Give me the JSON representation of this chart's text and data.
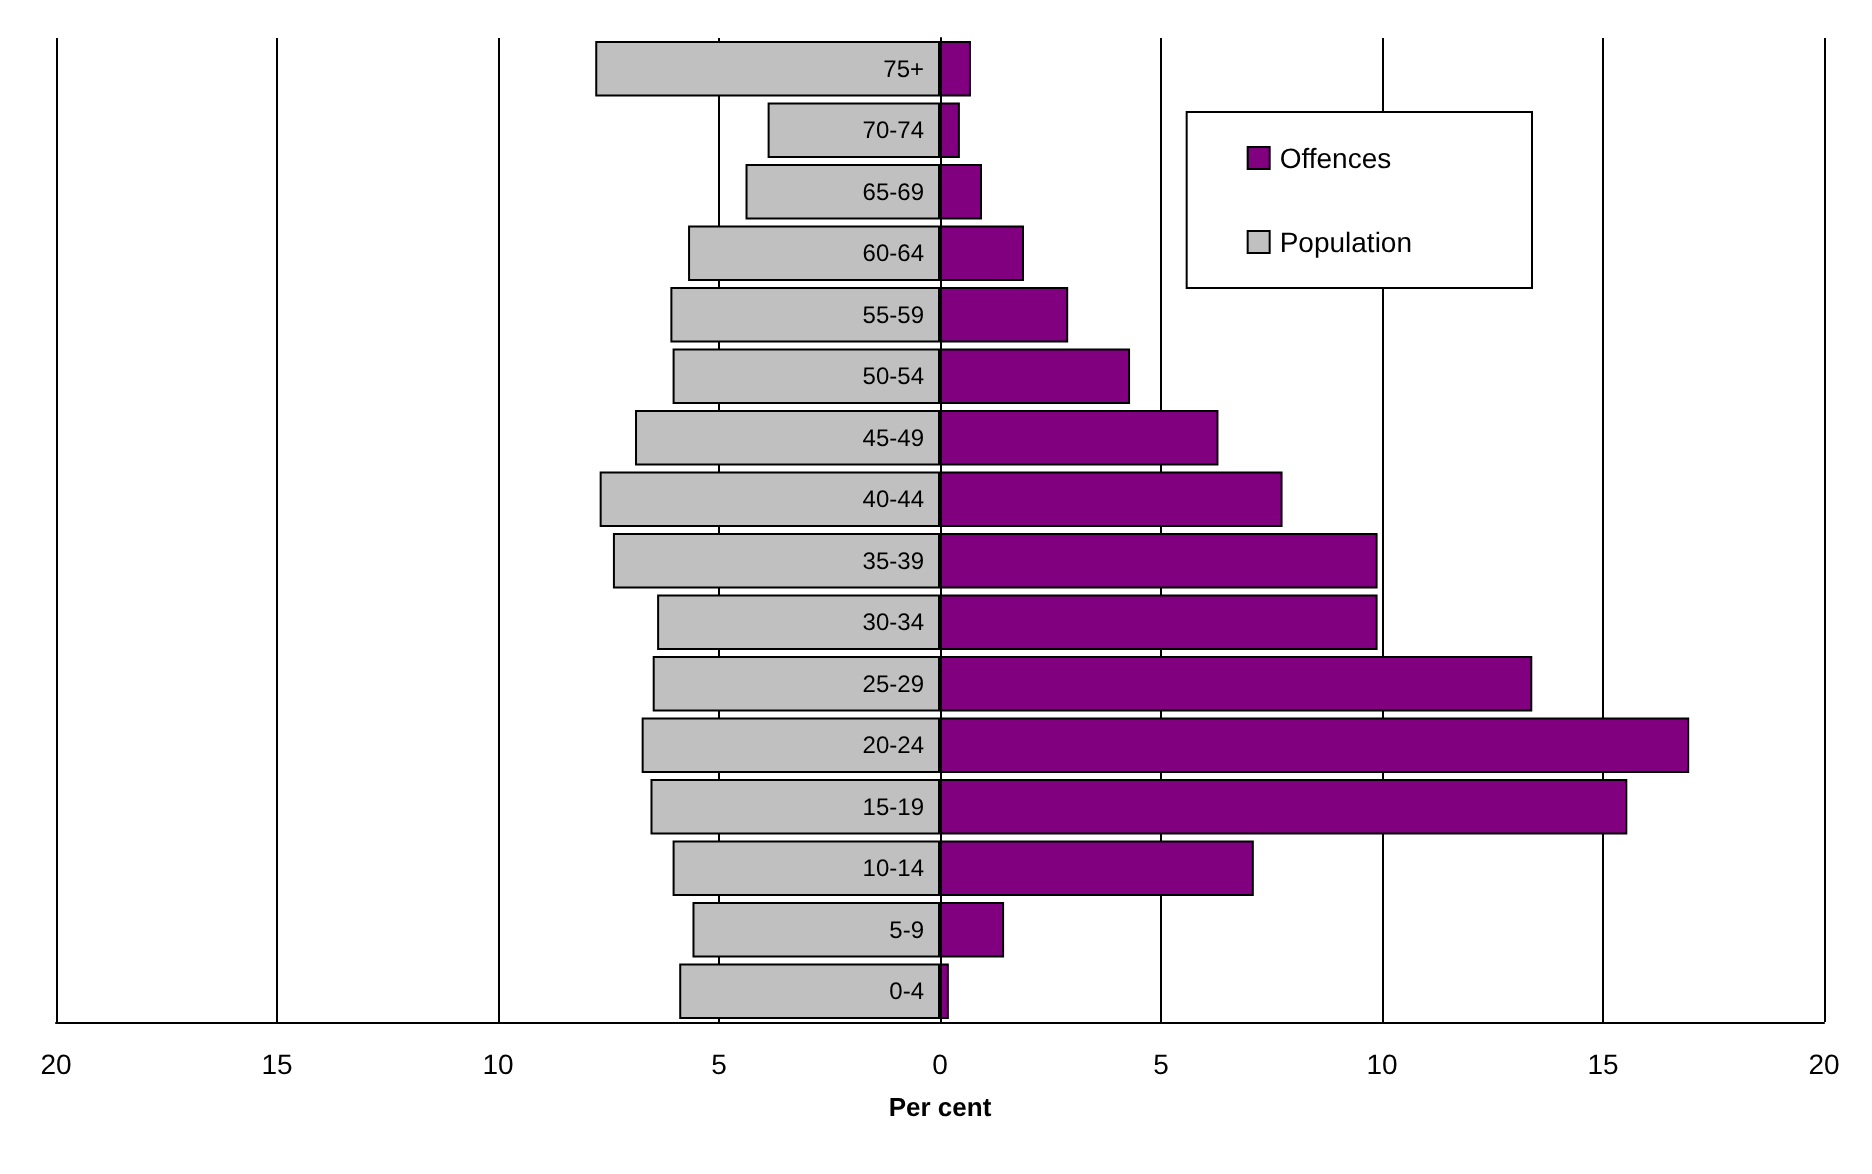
{
  "chart_data": {
    "type": "bar",
    "orientation": "horizontal",
    "stacked": true,
    "xlabel": "Per cent",
    "categories": [
      "75+",
      "70-74",
      "65-69",
      "60-64",
      "55-59",
      "50-54",
      "45-49",
      "40-44",
      "35-39",
      "30-34",
      "25-29",
      "20-24",
      "15-19",
      "10-14",
      "5-9",
      "0-4"
    ],
    "series": [
      {
        "name": "Offences",
        "color": "#800080",
        "values": [
          0.7,
          0.45,
          0.95,
          1.9,
          2.9,
          4.3,
          6.3,
          7.75,
          9.9,
          9.9,
          13.4,
          16.95,
          15.55,
          7.1,
          1.45,
          0.2
        ]
      },
      {
        "name": "Population",
        "color": "#c0c0c0",
        "values": [
          -7.8,
          -3.9,
          -4.4,
          -5.7,
          -6.1,
          -6.05,
          -6.9,
          -7.7,
          -7.4,
          -6.4,
          -6.5,
          -6.75,
          -6.55,
          -6.05,
          -5.6,
          -5.9
        ]
      }
    ],
    "xlim": [
      -20,
      20
    ],
    "xticks": [
      {
        "value": -20,
        "label": "20"
      },
      {
        "value": -15,
        "label": "15"
      },
      {
        "value": -10,
        "label": "10"
      },
      {
        "value": -5,
        "label": "5"
      },
      0,
      5,
      10,
      15,
      20
    ],
    "grid": "x",
    "legend": "top right"
  }
}
